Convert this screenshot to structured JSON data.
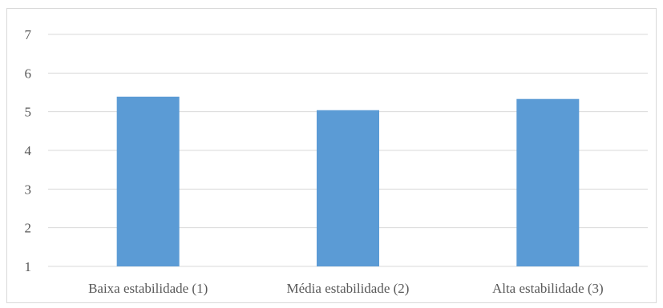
{
  "chart_data": {
    "type": "bar",
    "title": "",
    "xlabel": "",
    "ylabel": "",
    "categories": [
      "Baixa estabilidade (1)",
      "Média estabilidade (2)",
      "Alta estabilidade (3)"
    ],
    "values": [
      5.39,
      5.04,
      5.33
    ],
    "ylim": [
      1,
      7
    ],
    "yticks": [
      "1",
      "2",
      "3",
      "4",
      "5",
      "6",
      "7"
    ],
    "grid": true,
    "legend": "none",
    "colors": {
      "bar": "#5b9bd5",
      "grid": "#d9d9d9",
      "text": "#595959",
      "border": "#d9d9d9"
    }
  }
}
